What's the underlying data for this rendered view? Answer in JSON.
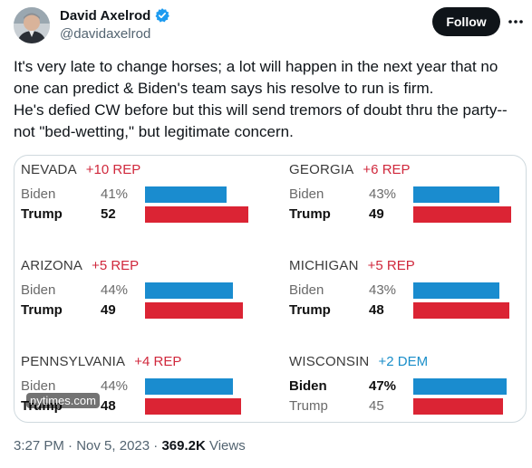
{
  "author": {
    "name": "David Axelrod",
    "handle": "@davidaxelrod",
    "verified_icon": "verified-badge-icon"
  },
  "follow_label": "Follow",
  "tweet_lines": [
    "It's very late to change horses; a lot will happen in the next year that no one can predict & Biden's team says his resolve to run is firm.",
    "He's defied CW before but this will send tremors of doubt thru the party--not \"bed-wetting,\" but legitimate concern."
  ],
  "colors": {
    "biden_bar": "#1a8ccf",
    "trump_bar": "#db2434",
    "rep_text": "#d0283c",
    "dem_text": "#1a8ec9"
  },
  "states": [
    {
      "name": "NEVADA",
      "margin": "+10 REP",
      "party": "rep",
      "rows": [
        {
          "candidate": "Biden",
          "pct": "41%",
          "value": 41,
          "leader": false
        },
        {
          "candidate": "Trump",
          "pct": "52",
          "value": 52,
          "leader": true
        }
      ]
    },
    {
      "name": "GEORGIA",
      "margin": "+6 REP",
      "party": "rep",
      "rows": [
        {
          "candidate": "Biden",
          "pct": "43%",
          "value": 43,
          "leader": false
        },
        {
          "candidate": "Trump",
          "pct": "49",
          "value": 49,
          "leader": true
        }
      ]
    },
    {
      "name": "ARIZONA",
      "margin": "+5 REP",
      "party": "rep",
      "rows": [
        {
          "candidate": "Biden",
          "pct": "44%",
          "value": 44,
          "leader": false
        },
        {
          "candidate": "Trump",
          "pct": "49",
          "value": 49,
          "leader": true
        }
      ]
    },
    {
      "name": "MICHIGAN",
      "margin": "+5 REP",
      "party": "rep",
      "rows": [
        {
          "candidate": "Biden",
          "pct": "43%",
          "value": 43,
          "leader": false
        },
        {
          "candidate": "Trump",
          "pct": "48",
          "value": 48,
          "leader": true
        }
      ]
    },
    {
      "name": "PENNSYLVANIA",
      "margin": "+4 REP",
      "party": "rep",
      "rows": [
        {
          "candidate": "Biden",
          "pct": "44%",
          "value": 44,
          "leader": false
        },
        {
          "candidate": "Trump",
          "pct": "48",
          "value": 48,
          "leader": true
        }
      ]
    },
    {
      "name": "WISCONSIN",
      "margin": "+2 DEM",
      "party": "dem",
      "rows": [
        {
          "candidate": "Biden",
          "pct": "47%",
          "value": 47,
          "leader": true
        },
        {
          "candidate": "Trump",
          "pct": "45",
          "value": 45,
          "leader": false
        }
      ]
    }
  ],
  "watermark": "nytimes.com",
  "footer": {
    "time": "3:27 PM",
    "separator": " · ",
    "date": "Nov 5, 2023",
    "views_count": "369.2K",
    "views_label": " Views"
  }
}
